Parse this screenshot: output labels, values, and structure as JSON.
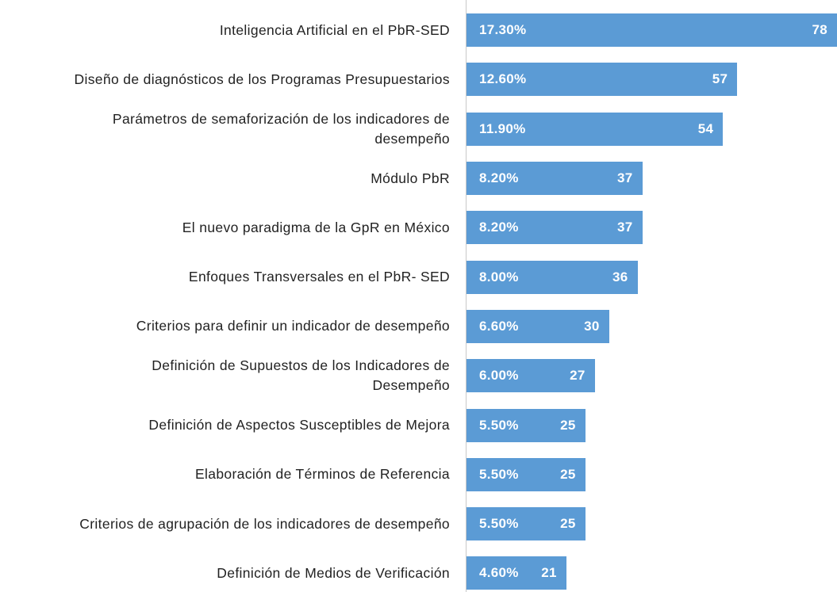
{
  "chart_data": {
    "type": "barh",
    "categories": [
      "Inteligencia Artificial en el PbR-SED",
      "Diseño de diagnósticos de los Programas Presupuestarios",
      "Parámetros de semaforización de los indicadores de\ndesempeño",
      "Módulo PbR",
      "El nuevo paradigma de la GpR en México",
      "Enfoques Transversales en el PbR- SED",
      "Criterios para definir un indicador de desempeño",
      "Definición de Supuestos de los Indicadores de\nDesempeño",
      "Definición de Aspectos Susceptibles de Mejora",
      "Elaboración de Términos de Referencia",
      "Criterios de agrupación de los indicadores de desempeño",
      "Definición de Medios de Verificación"
    ],
    "values": [
      78,
      57,
      54,
      37,
      37,
      36,
      30,
      27,
      25,
      25,
      25,
      21
    ],
    "shares": {
      "values": [
        17.3,
        12.6,
        11.9,
        8.2,
        8.2,
        8.0,
        6.6,
        6.0,
        5.5,
        5.5,
        5.5,
        4.6
      ],
      "value_labels": [
        "17.30%",
        "12.60%",
        "11.90%",
        "8.20%",
        "8.20%",
        "8.00%",
        "6.60%",
        "6.00%",
        "5.50%",
        "5.50%",
        "5.50%",
        "4.60%"
      ]
    },
    "color": "#5b9bd5"
  }
}
